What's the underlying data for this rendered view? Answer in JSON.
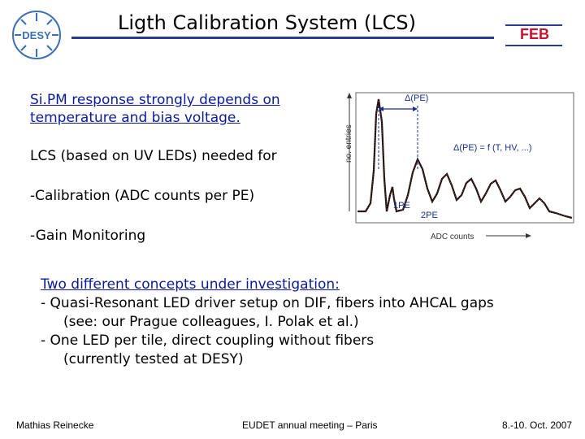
{
  "header": {
    "logo_text": "DESY",
    "title": "Ligth Calibration System (LCS)",
    "feb_label": "FEB"
  },
  "bullets": {
    "sipm": "Si.PM response strongly depends on temperature and bias voltage.",
    "lcs": "LCS (based on UV LEDs) needed for",
    "calibration": "-Calibration (ADC counts per PE)",
    "gain": "-Gain Monitoring"
  },
  "plot": {
    "ylabel": "no. entries",
    "xlabel": "ADC counts",
    "delta_label": "Δ(PE)",
    "formula": "Δ(PE) = f (T, HV, ...)",
    "peak1": "1PE",
    "peak2": "2PE"
  },
  "concepts": {
    "heading": "Two different concepts under investigation:",
    "line1": "- Quasi-Resonant LED driver setup on DIF, fibers into AHCAL gaps",
    "line2": "(see: our Prague colleagues, I. Polak et al.)",
    "line3": "- One LED per tile, direct coupling without fibers",
    "line4": "(currently tested at DESY)"
  },
  "footer": {
    "author": "Mathias Reinecke",
    "event": "EUDET annual meeting – Paris",
    "date": "8.-10. Oct. 2007"
  }
}
